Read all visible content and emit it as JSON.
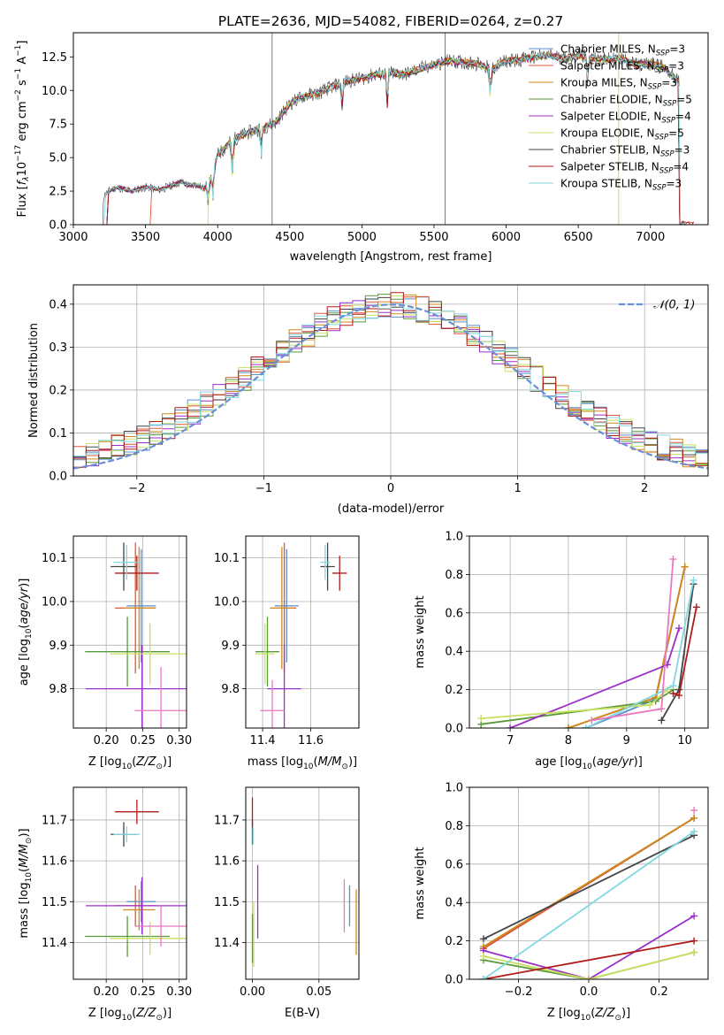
{
  "figure_title": "PLATE=2636, MJD=54082, FIBERID=0264, z=0.27",
  "colors": {
    "Chabrier MILES": "#5b8fd1",
    "Salpeter MILES": "#e05535",
    "Kroupa MILES": "#d08a1a",
    "Chabrier ELODIE": "#5a9a3a",
    "Salpeter ELODIE": "#9b30c8",
    "Kroupa ELODIE": "#c8e060",
    "Chabrier STELIB": "#444444",
    "Salpeter STELIB": "#b01a1a",
    "Kroupa STELIB": "#80d8e0",
    "extra": "#e878c0",
    "gauss": "#6a8fd8",
    "grid": "#b0b0b0"
  },
  "chart_data": [
    {
      "id": "spectrum",
      "type": "line",
      "xlabel": "wavelength [Angstrom, rest frame]",
      "ylabel": "Flux [f_λ10^-17 erg cm^-2 s^-1 A^-1]",
      "ylabel_parts": [
        "Flux [",
        "f",
        "λ",
        "10",
        "−17",
        " erg cm",
        "−2",
        " s",
        "−1",
        " A",
        "−1",
        "]"
      ],
      "xlim": [
        3000,
        7400
      ],
      "ylim": [
        0,
        14.3
      ],
      "xticks": [
        3000,
        3500,
        4000,
        4500,
        5000,
        5500,
        6000,
        6500,
        7000
      ],
      "yticks": [
        0.0,
        2.5,
        5.0,
        7.5,
        10.0,
        12.5
      ],
      "ytick_labels": [
        "0.0",
        "2.5",
        "5.0",
        "7.5",
        "10.0",
        "12.5"
      ],
      "grid": false,
      "legend_position": "upper right",
      "legend": [
        {
          "name": "Chabrier MILES",
          "nssp": "3"
        },
        {
          "name": "Salpeter MILES",
          "nssp": "3"
        },
        {
          "name": "Kroupa MILES",
          "nssp": "3"
        },
        {
          "name": "Chabrier ELODIE",
          "nssp": "5"
        },
        {
          "name": "Salpeter ELODIE",
          "nssp": "4"
        },
        {
          "name": "Kroupa ELODIE",
          "nssp": "5"
        },
        {
          "name": "Chabrier STELIB",
          "nssp": "3"
        },
        {
          "name": "Salpeter STELIB",
          "nssp": "4"
        },
        {
          "name": "Kroupa STELIB",
          "nssp": "3"
        }
      ],
      "legend_prefix": "N",
      "legend_sub": "SSP",
      "continuum": {
        "x": [
          3200,
          3210,
          3250,
          3300,
          3400,
          3500,
          3600,
          3700,
          3750,
          3800,
          3850,
          3900,
          3950,
          4000,
          4050,
          4100,
          4200,
          4300,
          4400,
          4500,
          4600,
          4700,
          4800,
          4900,
          5000,
          5100,
          5200,
          5300,
          5400,
          5500,
          5600,
          5700,
          5800,
          5900,
          6000,
          6100,
          6200,
          6300,
          6400,
          6500,
          6600,
          6700,
          6800,
          6900,
          7000,
          7100,
          7200
        ],
        "y": [
          0,
          2.2,
          2.5,
          2.8,
          2.5,
          2.8,
          2.6,
          3.0,
          3.2,
          2.9,
          3.0,
          2.7,
          3.3,
          5.2,
          5.7,
          6.3,
          6.8,
          7.2,
          7.6,
          9.0,
          9.6,
          9.8,
          10.3,
          10.7,
          10.9,
          11.2,
          11.3,
          11.2,
          11.6,
          11.9,
          12.2,
          12.1,
          12.0,
          11.6,
          12.2,
          12.3,
          12.5,
          12.6,
          12.4,
          12.6,
          12.4,
          12.3,
          12.4,
          11.9,
          12.0,
          11.7,
          10.6
        ]
      },
      "dips": [
        {
          "x": 3934,
          "y": 1.4
        },
        {
          "x": 3969,
          "y": 1.9
        },
        {
          "x": 4102,
          "y": 3.2
        },
        {
          "x": 4304,
          "y": 5.3
        },
        {
          "x": 4861,
          "y": 8.3
        },
        {
          "x": 5175,
          "y": 8.6
        },
        {
          "x": 5890,
          "y": 9.3
        },
        {
          "x": 6563,
          "y": 10.5
        }
      ],
      "spikes": [
        {
          "x": 4378,
          "y": 14.3
        },
        {
          "x": 5577,
          "y": 14.3
        }
      ]
    },
    {
      "id": "residuals",
      "type": "line",
      "xlabel": "(data-model)/error",
      "ylabel": "Normed distribution",
      "xlim": [
        -2.5,
        2.5
      ],
      "ylim": [
        0,
        0.445
      ],
      "xticks": [
        -2,
        -1,
        0,
        1,
        2
      ],
      "xtick_labels": [
        "−2",
        "−1",
        "0",
        "1",
        "2"
      ],
      "yticks": [
        0.0,
        0.1,
        0.2,
        0.3,
        0.4
      ],
      "ytick_labels": [
        "0.0",
        "0.1",
        "0.2",
        "0.3",
        "0.4"
      ],
      "grid": true,
      "legend_position": "upper right",
      "gauss_label": "𝒩(0, 1)",
      "bin_width": 0.1
    },
    {
      "id": "age_vs_Z",
      "type": "scatter",
      "xlabel": "Z [log10(Z/Z⊙)]",
      "ylabel": "age [log10(age/yr)]",
      "xlim": [
        0.155,
        0.31
      ],
      "ylim": [
        9.71,
        10.15
      ],
      "xticks": [
        0.2,
        0.25,
        0.3
      ],
      "xtick_labels": [
        "0.20",
        "0.25",
        "0.30"
      ],
      "yticks": [
        9.8,
        9.9,
        10.0,
        10.1
      ],
      "ytick_labels": [
        "9.8",
        "9.9",
        "10.0",
        "10.1"
      ],
      "grid": true,
      "points": [
        {
          "c": "#5b8fd1",
          "x": 0.248,
          "xe": 0.02,
          "y": 9.99,
          "ye": 0.13
        },
        {
          "c": "#e05535",
          "x": 0.24,
          "xe": 0.028,
          "y": 9.985,
          "ye": 0.15
        },
        {
          "c": "#d08a1a",
          "x": 0.245,
          "xe": 0.022,
          "y": 9.985,
          "ye": 0.14
        },
        {
          "c": "#5a9a3a",
          "x": 0.229,
          "xe": 0.058,
          "y": 9.885,
          "ye": 0.08
        },
        {
          "c": "#9b30c8",
          "x": 0.249,
          "xe": 0.077,
          "y": 9.8,
          "ye": 0.1
        },
        {
          "c": "#c8e060",
          "x": 0.26,
          "xe": 0.055,
          "y": 9.88,
          "ye": 0.07
        },
        {
          "c": "#444444",
          "x": 0.224,
          "xe": 0.018,
          "y": 10.08,
          "ye": 0.055
        },
        {
          "c": "#b01a1a",
          "x": 0.242,
          "xe": 0.03,
          "y": 10.065,
          "ye": 0.04
        },
        {
          "c": "#80d8e0",
          "x": 0.228,
          "xe": 0.018,
          "y": 10.09,
          "ye": 0.04
        },
        {
          "c": "#e878c0",
          "x": 0.275,
          "xe": 0.036,
          "y": 9.75,
          "ye": 0.1
        }
      ]
    },
    {
      "id": "age_vs_mass",
      "type": "scatter",
      "xlabel": "mass [log10(M/M⊙)]",
      "ylabel": "",
      "xlim": [
        11.33,
        11.8
      ],
      "ylim": [
        9.71,
        10.15
      ],
      "xticks": [
        11.4,
        11.6
      ],
      "xtick_labels": [
        "11.4",
        "11.6"
      ],
      "yticks": [
        9.8,
        9.9,
        10.0,
        10.1
      ],
      "ytick_labels": [
        "9.8",
        "9.9",
        "10.0",
        "10.1"
      ],
      "grid": true,
      "points": [
        {
          "c": "#5b8fd1",
          "x": 11.5,
          "xe": 0.05,
          "y": 9.99,
          "ye": 0.13
        },
        {
          "c": "#e05535",
          "x": 11.49,
          "xe": 0.05,
          "y": 9.985,
          "ye": 0.15
        },
        {
          "c": "#d08a1a",
          "x": 11.48,
          "xe": 0.05,
          "y": 9.985,
          "ye": 0.14
        },
        {
          "c": "#5a9a3a",
          "x": 11.42,
          "xe": 0.05,
          "y": 9.885,
          "ye": 0.08
        },
        {
          "c": "#9b30c8",
          "x": 11.49,
          "xe": 0.07,
          "y": 9.8,
          "ye": 0.1
        },
        {
          "c": "#c8e060",
          "x": 11.41,
          "xe": 0.04,
          "y": 9.88,
          "ye": 0.07
        },
        {
          "c": "#444444",
          "x": 11.67,
          "xe": 0.03,
          "y": 10.08,
          "ye": 0.055
        },
        {
          "c": "#b01a1a",
          "x": 11.72,
          "xe": 0.03,
          "y": 10.065,
          "ye": 0.04
        },
        {
          "c": "#80d8e0",
          "x": 11.66,
          "xe": 0.02,
          "y": 10.09,
          "ye": 0.04
        },
        {
          "c": "#e878c0",
          "x": 11.44,
          "xe": 0.05,
          "y": 9.75,
          "ye": 0.07
        }
      ]
    },
    {
      "id": "weight_vs_age",
      "type": "line",
      "xlabel": "age [log10(age/yr)]",
      "ylabel": "mass weight",
      "xlim": [
        6.3,
        10.4
      ],
      "ylim": [
        0,
        1
      ],
      "xticks": [
        7,
        8,
        9,
        10
      ],
      "xtick_labels": [
        "7",
        "8",
        "9",
        "10"
      ],
      "yticks": [
        0.0,
        0.2,
        0.4,
        0.6,
        0.8,
        1.0
      ],
      "ytick_labels": [
        "0.0",
        "0.2",
        "0.4",
        "0.6",
        "0.8",
        "1.0"
      ],
      "grid": true,
      "series": [
        {
          "c": "#5b8fd1",
          "x": [
            8.3,
            9.5,
            10.0
          ],
          "y": [
            0.0,
            0.15,
            0.84
          ]
        },
        {
          "c": "#e05535",
          "x": [
            8.0,
            9.5,
            10.0
          ],
          "y": [
            0.0,
            0.16,
            0.84
          ]
        },
        {
          "c": "#d08a1a",
          "x": [
            8.0,
            9.5,
            10.0
          ],
          "y": [
            0.0,
            0.16,
            0.84
          ]
        },
        {
          "c": "#5a9a3a",
          "x": [
            6.5,
            9.5,
            9.8
          ],
          "y": [
            0.02,
            0.14,
            0.2
          ]
        },
        {
          "c": "#9b30c8",
          "x": [
            7.0,
            9.7,
            9.9
          ],
          "y": [
            0.0,
            0.33,
            0.52
          ]
        },
        {
          "c": "#c8e060",
          "x": [
            6.5,
            9.4,
            9.7
          ],
          "y": [
            0.05,
            0.12,
            0.2
          ]
        },
        {
          "c": "#444444",
          "x": [
            9.6,
            9.9,
            10.15
          ],
          "y": [
            0.04,
            0.2,
            0.75
          ]
        },
        {
          "c": "#b01a1a",
          "x": [
            9.8,
            9.9,
            10.2
          ],
          "y": [
            0.18,
            0.17,
            0.63
          ]
        },
        {
          "c": "#80d8e0",
          "x": [
            8.3,
            9.8,
            10.15
          ],
          "y": [
            0.0,
            0.22,
            0.77
          ]
        },
        {
          "c": "#e878c0",
          "x": [
            8.4,
            9.6,
            9.8
          ],
          "y": [
            0.04,
            0.1,
            0.88
          ]
        }
      ]
    },
    {
      "id": "mass_vs_Z",
      "type": "scatter",
      "xlabel": "Z [log10(Z/Z⊙)]",
      "ylabel": "mass [log10(M/M⊙)]",
      "xlim": [
        0.155,
        0.31
      ],
      "ylim": [
        11.31,
        11.78
      ],
      "xticks": [
        0.2,
        0.25,
        0.3
      ],
      "xtick_labels": [
        "0.20",
        "0.25",
        "0.30"
      ],
      "yticks": [
        11.4,
        11.5,
        11.6,
        11.7
      ],
      "ytick_labels": [
        "11.4",
        "11.5",
        "11.6",
        "11.7"
      ],
      "grid": true,
      "points": [
        {
          "c": "#5b8fd1",
          "x": 0.248,
          "xe": 0.02,
          "y": 11.5,
          "ye": 0.05
        },
        {
          "c": "#e05535",
          "x": 0.24,
          "xe": 0.028,
          "y": 11.49,
          "ye": 0.05
        },
        {
          "c": "#d08a1a",
          "x": 0.245,
          "xe": 0.022,
          "y": 11.48,
          "ye": 0.05
        },
        {
          "c": "#5a9a3a",
          "x": 0.229,
          "xe": 0.058,
          "y": 11.415,
          "ye": 0.05
        },
        {
          "c": "#9b30c8",
          "x": 0.249,
          "xe": 0.077,
          "y": 11.49,
          "ye": 0.07
        },
        {
          "c": "#c8e060",
          "x": 0.26,
          "xe": 0.055,
          "y": 11.41,
          "ye": 0.04
        },
        {
          "c": "#444444",
          "x": 0.224,
          "xe": 0.018,
          "y": 11.665,
          "ye": 0.03
        },
        {
          "c": "#b01a1a",
          "x": 0.242,
          "xe": 0.03,
          "y": 11.72,
          "ye": 0.03
        },
        {
          "c": "#80d8e0",
          "x": 0.228,
          "xe": 0.018,
          "y": 11.665,
          "ye": 0.02
        },
        {
          "c": "#e878c0",
          "x": 0.275,
          "xe": 0.036,
          "y": 11.44,
          "ye": 0.05
        }
      ]
    },
    {
      "id": "mass_vs_EBV",
      "type": "scatter",
      "xlabel": "E(B-V)",
      "ylabel": "",
      "xlim": [
        -0.005,
        0.08
      ],
      "ylim": [
        11.31,
        11.78
      ],
      "xticks": [
        0.0,
        0.05
      ],
      "xtick_labels": [
        "0.00",
        "0.05"
      ],
      "yticks": [
        11.4,
        11.5,
        11.6,
        11.7
      ],
      "ytick_labels": [
        "11.4",
        "11.5",
        "11.6",
        "11.7"
      ],
      "grid": true,
      "points": [
        {
          "c": "#5b8fd1",
          "x": 0.073,
          "xe": 0,
          "y": 11.49,
          "ye": 0.05
        },
        {
          "c": "#d08a1a",
          "x": 0.078,
          "xe": 0,
          "y": 11.45,
          "ye": 0.08
        },
        {
          "c": "#e878c0",
          "x": 0.069,
          "xe": 0,
          "y": 11.49,
          "ye": 0.065
        },
        {
          "c": "#444444",
          "x": 0.0,
          "xe": 0,
          "y": 11.67,
          "ye": 0.03
        },
        {
          "c": "#b01a1a",
          "x": 0.0,
          "xe": 0,
          "y": 11.72,
          "ye": 0.035
        },
        {
          "c": "#80d8e0",
          "x": 0.0005,
          "xe": 0,
          "y": 11.66,
          "ye": 0.02
        },
        {
          "c": "#5a9a3a",
          "x": 0.0,
          "xe": 0,
          "y": 11.41,
          "ye": 0.06
        },
        {
          "c": "#c8e060",
          "x": 0.001,
          "xe": 0,
          "y": 11.42,
          "ye": 0.08
        },
        {
          "c": "#9b30c8",
          "x": 0.004,
          "xe": 0,
          "y": 11.5,
          "ye": 0.09
        }
      ]
    },
    {
      "id": "weight_vs_Z",
      "type": "line",
      "xlabel": "Z [log10(Z/Z⊙)]",
      "ylabel": "mass weight",
      "xlim": [
        -0.34,
        0.34
      ],
      "ylim": [
        0,
        1
      ],
      "xticks": [
        -0.2,
        0.0,
        0.2
      ],
      "xtick_labels": [
        "−0.2",
        "0.0",
        "0.2"
      ],
      "yticks": [
        0.0,
        0.2,
        0.4,
        0.6,
        0.8,
        1.0
      ],
      "ytick_labels": [
        "0.0",
        "0.2",
        "0.4",
        "0.6",
        "0.8",
        "1.0"
      ],
      "grid": true,
      "series": [
        {
          "c": "#5b8fd1",
          "x": [
            -0.3,
            0.3
          ],
          "y": [
            0.16,
            0.84
          ]
        },
        {
          "c": "#e05535",
          "x": [
            -0.3,
            0.3
          ],
          "y": [
            0.16,
            0.84
          ]
        },
        {
          "c": "#d08a1a",
          "x": [
            -0.3,
            0.3
          ],
          "y": [
            0.17,
            0.84
          ]
        },
        {
          "c": "#5a9a3a",
          "x": [
            -0.3,
            0.0,
            0.3
          ],
          "y": [
            0.1,
            0.0,
            0.14
          ]
        },
        {
          "c": "#9b30c8",
          "x": [
            -0.3,
            0.0,
            0.3
          ],
          "y": [
            0.15,
            0.0,
            0.33
          ]
        },
        {
          "c": "#c8e060",
          "x": [
            -0.3,
            0.0,
            0.3
          ],
          "y": [
            0.12,
            0.0,
            0.14
          ]
        },
        {
          "c": "#444444",
          "x": [
            -0.3,
            0.3
          ],
          "y": [
            0.21,
            0.75
          ]
        },
        {
          "c": "#b01a1a",
          "x": [
            -0.3,
            0.3
          ],
          "y": [
            0.0,
            0.2
          ]
        },
        {
          "c": "#80d8e0",
          "x": [
            -0.3,
            0.3
          ],
          "y": [
            0.0,
            0.77
          ]
        },
        {
          "c": "#e878c0",
          "x": [
            0.3
          ],
          "y": [
            0.88
          ]
        }
      ]
    }
  ]
}
